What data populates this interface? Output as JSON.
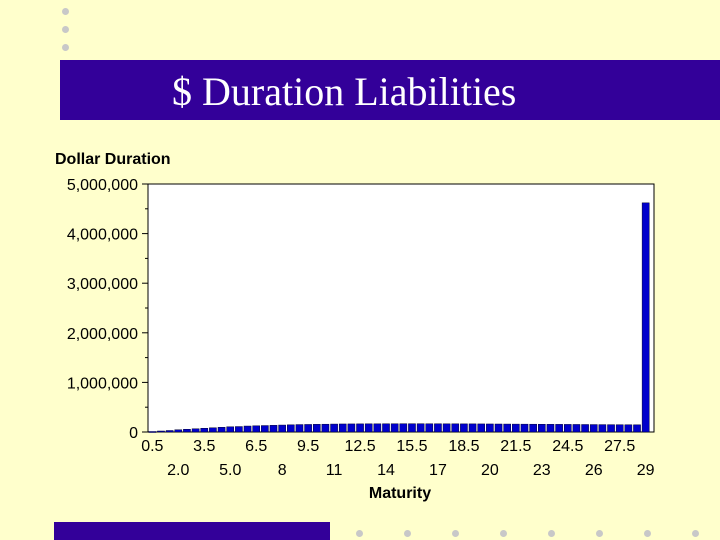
{
  "slide": {
    "title": "$ Duration Liabilities",
    "colors": {
      "background": "#ffffcc",
      "title_bar": "#330099",
      "bar": "#0000cc"
    }
  },
  "chart_data": {
    "type": "bar",
    "ylabel": "Dollar Duration",
    "xlabel": "Maturity",
    "ylim": [
      0,
      5000000
    ],
    "y_ticks": [
      "5,000,000",
      "4,000,000",
      "3,000,000",
      "2,000,000",
      "1,000,000",
      "0"
    ],
    "x_ticks_top": [
      "0.5",
      "3.5",
      "6.5",
      "9.5",
      "12.5",
      "15.5",
      "18.5",
      "21.5",
      "24.5",
      "27.5"
    ],
    "x_ticks_bottom": [
      "2.0",
      "5.0",
      "8",
      "11",
      "14",
      "17",
      "20",
      "23",
      "26",
      "29"
    ],
    "categories": [
      0.5,
      1.0,
      1.5,
      2.0,
      2.5,
      3.0,
      3.5,
      4.0,
      4.5,
      5.0,
      5.5,
      6.0,
      6.5,
      7.0,
      7.5,
      8,
      8.5,
      9.0,
      9.5,
      10,
      10.5,
      11,
      11.5,
      12,
      12.5,
      13,
      13.5,
      14,
      14.5,
      15,
      15.5,
      16,
      16.5,
      17,
      17.5,
      18,
      18.5,
      19,
      19.5,
      20,
      20.5,
      21,
      21.5,
      22,
      22.5,
      23,
      23.5,
      24,
      24.5,
      25,
      25.5,
      26,
      26.5,
      27,
      27.5,
      28,
      28.5,
      29
    ],
    "values": [
      10000,
      20000,
      30000,
      45000,
      55000,
      65000,
      75000,
      85000,
      95000,
      105000,
      110000,
      120000,
      125000,
      130000,
      135000,
      140000,
      145000,
      150000,
      152000,
      155000,
      157000,
      160000,
      162000,
      163000,
      164000,
      165000,
      165000,
      166000,
      166000,
      167000,
      167000,
      167000,
      166000,
      166000,
      165000,
      165000,
      164000,
      164000,
      163000,
      162000,
      161000,
      160000,
      159000,
      158000,
      157000,
      156000,
      155000,
      154000,
      153000,
      152000,
      151000,
      150000,
      149000,
      148000,
      147000,
      146000,
      145000,
      4620000
    ],
    "grid": false,
    "legend": "none"
  }
}
